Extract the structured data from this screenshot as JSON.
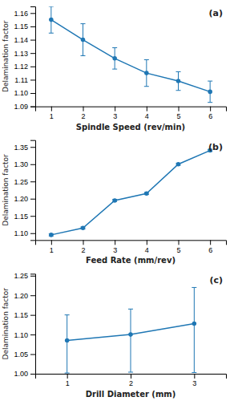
{
  "chart_data": [
    {
      "type": "line",
      "x": [
        1,
        2,
        3,
        4,
        5,
        6
      ],
      "values": [
        1.155,
        1.14,
        1.126,
        1.115,
        1.109,
        1.101
      ],
      "yerr": [
        0.01,
        0.012,
        0.008,
        0.01,
        0.007,
        0.008
      ],
      "x_label": "Spindle Speed (rev/min)",
      "y_label": "Delamination factor",
      "annotation": "(a)",
      "xlim": [
        0.5,
        6.5
      ],
      "xticks": [
        1,
        2,
        3,
        4,
        5,
        6
      ],
      "ylim": [
        1.09,
        1.165
      ],
      "yticks": [
        1.09,
        {
          "value": 1.1,
          "label": "1.10"
        },
        1.11,
        1.12,
        1.13,
        1.14,
        1.15,
        1.16
      ],
      "marker": "circle",
      "grid": false
    },
    {
      "type": "line",
      "x": [
        1,
        2,
        3,
        4,
        5,
        6
      ],
      "values": [
        1.095,
        1.115,
        1.195,
        1.215,
        1.3,
        1.34
      ],
      "yerr": [
        0.003,
        0.003,
        0.003,
        0.003,
        0.003,
        0.003
      ],
      "x_label": "Feed Rate (mm/rev)",
      "y_label": "Delamination factor",
      "annotation": "(b)",
      "xlim": [
        0.5,
        6.5
      ],
      "xticks": [
        1,
        2,
        3,
        4,
        5,
        6
      ],
      "ylim": [
        1.08,
        1.37
      ],
      "yticks": [
        {
          "value": 1.1,
          "label": "1.10"
        },
        1.15,
        {
          "value": 1.2,
          "label": "1.20"
        },
        1.25,
        {
          "value": 1.3,
          "label": "1.30"
        },
        1.35
      ],
      "marker": "circle",
      "grid": false
    },
    {
      "type": "line",
      "x": [
        1,
        2,
        3
      ],
      "values": [
        1.085,
        1.1,
        1.128
      ],
      "yerr_low": [
        0.083,
        0.096,
        0.125
      ],
      "yerr_high": [
        0.065,
        0.065,
        0.092
      ],
      "x_label": "Drill Diameter (mm)",
      "y_label": "Delamination factor",
      "annotation": "(c)",
      "xlim": [
        0.5,
        3.5
      ],
      "xticks": [
        1,
        2,
        3
      ],
      "ylim": [
        1.0,
        1.255
      ],
      "yticks": [
        {
          "value": 1.0,
          "label": "1.00"
        },
        1.05,
        {
          "value": 1.1,
          "label": "1.10"
        },
        1.15,
        {
          "value": 1.2,
          "label": "1.20"
        },
        1.25
      ],
      "marker": "circle",
      "grid": false
    }
  ]
}
